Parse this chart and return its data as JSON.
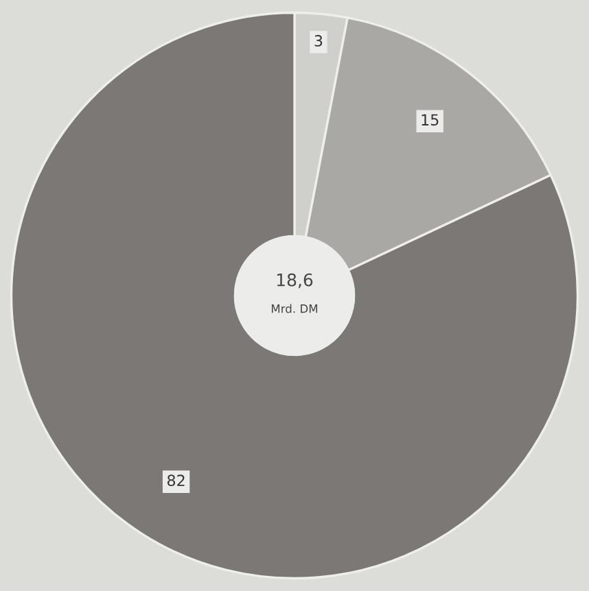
{
  "chart_data": {
    "type": "donut",
    "categories": [
      null,
      null,
      null
    ],
    "values": [
      3,
      15,
      82
    ],
    "colors": [
      "#cfcfcb",
      "#a9a8a4",
      "#7b7875"
    ],
    "data_labels": true,
    "annotations": [
      "18,6",
      "Mrd. DM"
    ]
  }
}
